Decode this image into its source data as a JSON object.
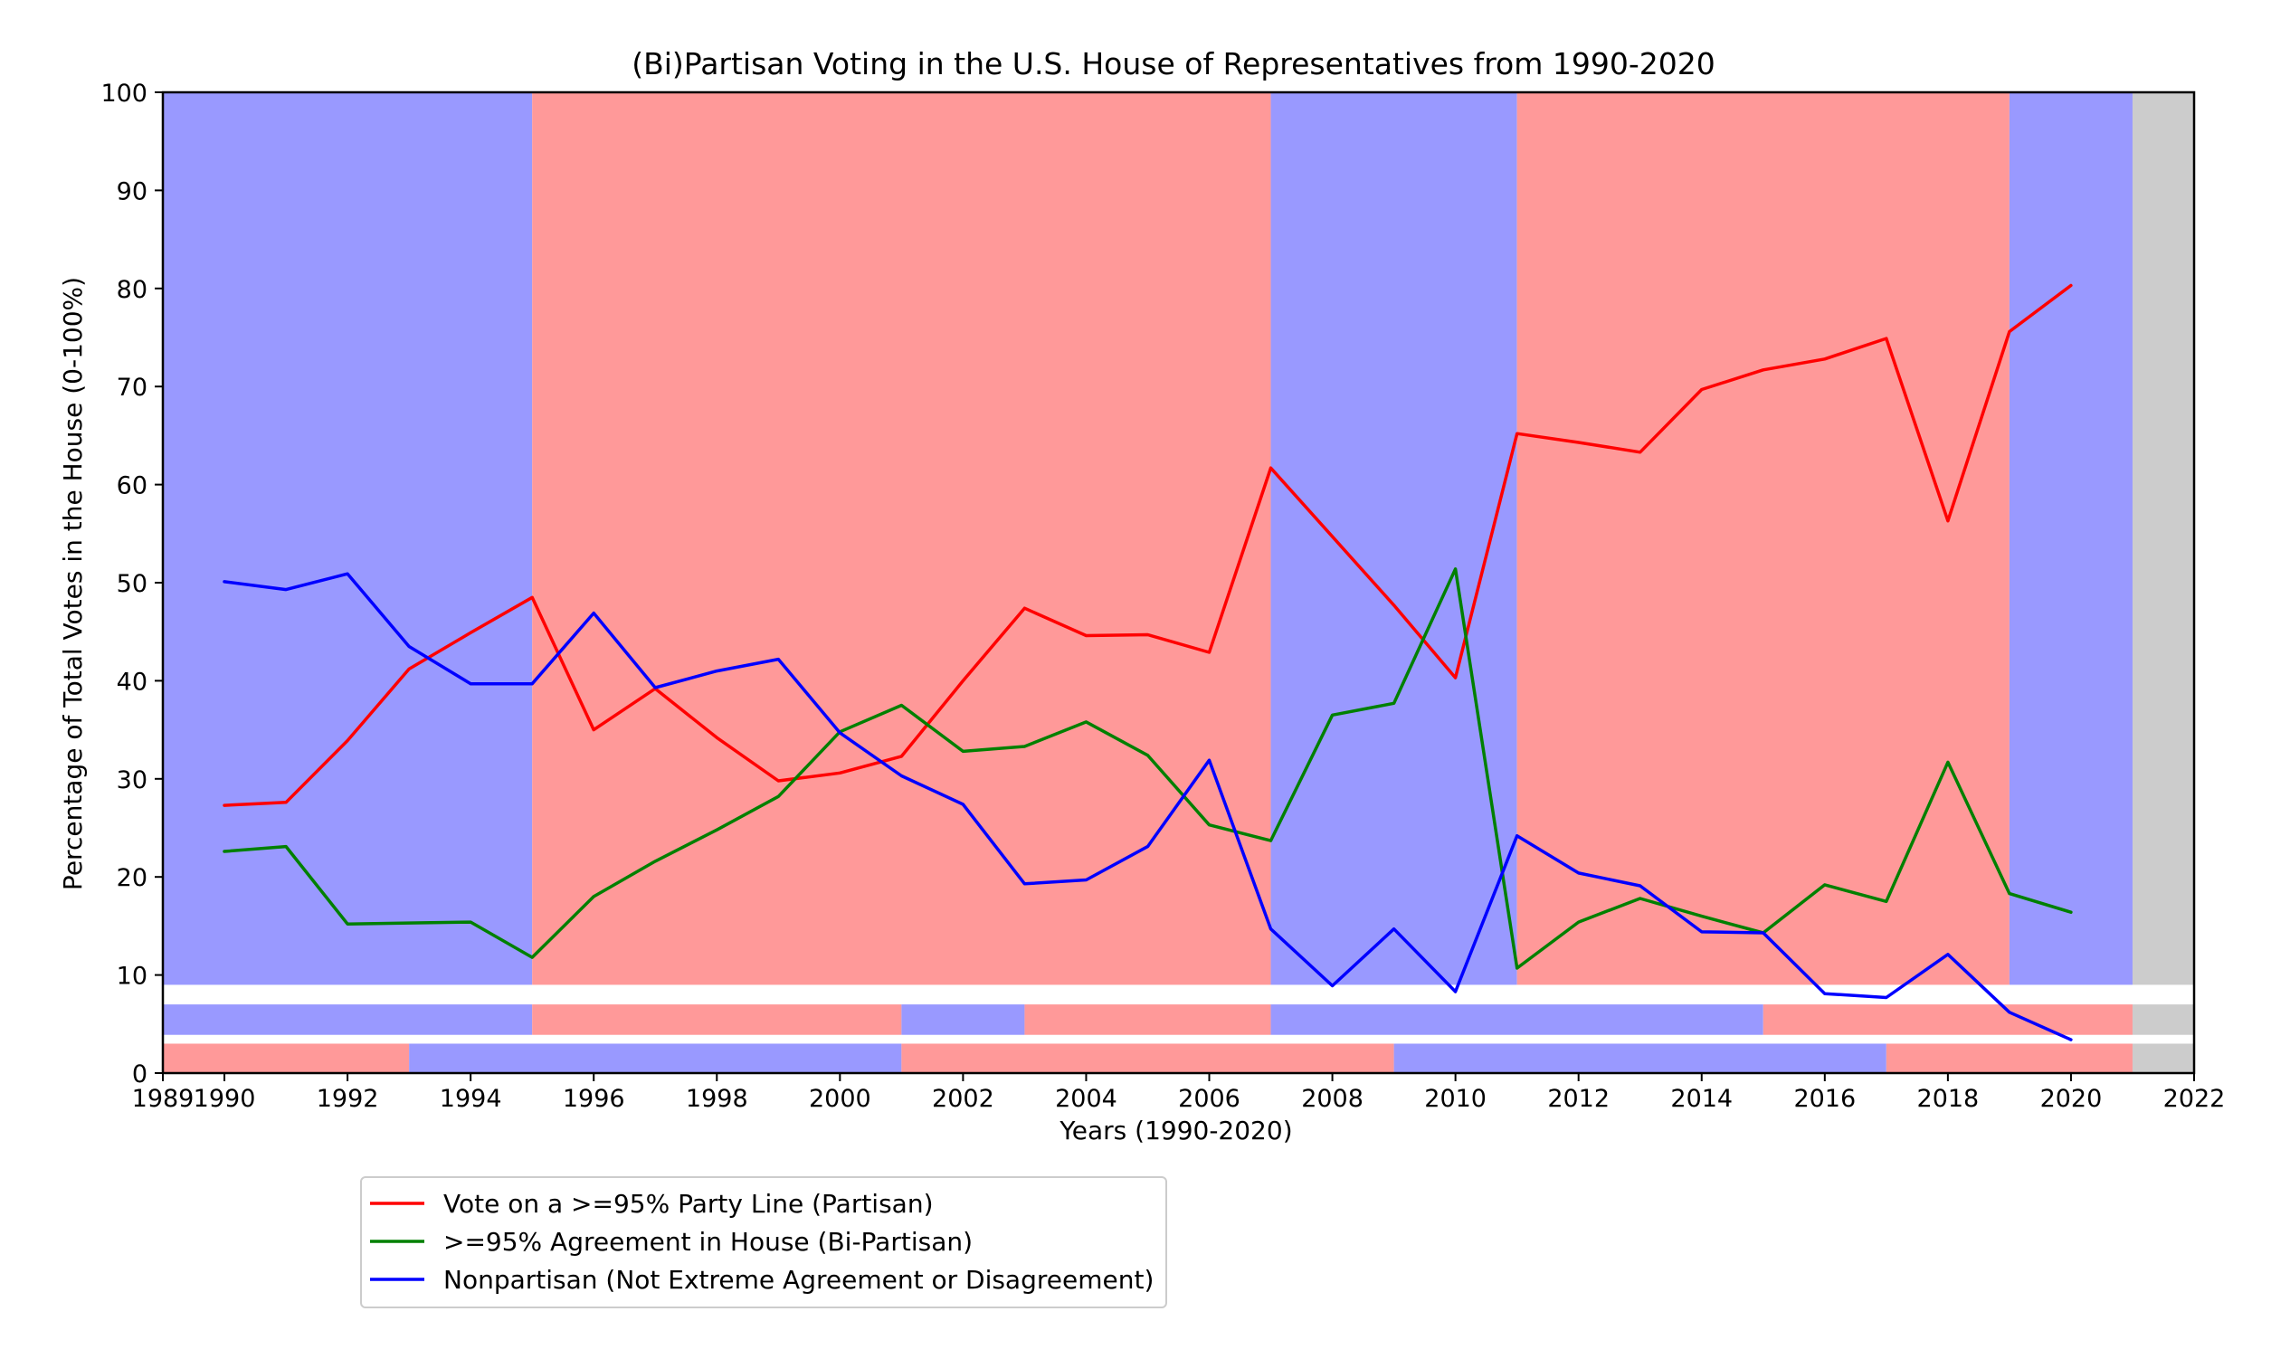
{
  "chart_data": {
    "type": "line",
    "title": "(Bi)Partisan Voting in the U.S. House of Representatives from 1990-2020",
    "xlabel": "Years (1990-2020)",
    "ylabel": "Percentage of Total Votes in the House (0-100%)",
    "xlim": [
      1989,
      2022
    ],
    "ylim": [
      0,
      100
    ],
    "xticks": [
      1989,
      1990,
      1992,
      1994,
      1996,
      1998,
      2000,
      2002,
      2004,
      2006,
      2008,
      2010,
      2012,
      2014,
      2016,
      2018,
      2020,
      2022
    ],
    "yticks": [
      0,
      10,
      20,
      30,
      40,
      50,
      60,
      70,
      80,
      90,
      100
    ],
    "grid": false,
    "legend_position": "below plot, left",
    "x": [
      1990,
      1991,
      1992,
      1993,
      1994,
      1995,
      1996,
      1997,
      1998,
      1999,
      2000,
      2001,
      2002,
      2003,
      2004,
      2005,
      2006,
      2007,
      2008,
      2009,
      2010,
      2011,
      2012,
      2013,
      2014,
      2015,
      2016,
      2017,
      2018,
      2019,
      2020
    ],
    "series": [
      {
        "name": "Vote on a >=95% Party Line (Partisan)",
        "color": "#ff0000",
        "values": [
          27.3,
          27.6,
          33.9,
          41.2,
          44.9,
          48.5,
          35.0,
          39.2,
          34.2,
          29.8,
          30.6,
          32.3,
          40.0,
          47.4,
          44.6,
          44.7,
          42.9,
          61.7,
          54.7,
          47.7,
          40.3,
          65.2,
          64.3,
          63.3,
          69.7,
          71.7,
          72.8,
          74.9,
          56.3,
          75.6,
          80.3
        ]
      },
      {
        "name": ">=95% Agreement in House (Bi-Partisan)",
        "color": "#008000",
        "values": [
          22.6,
          23.1,
          15.2,
          15.3,
          15.4,
          11.8,
          18.0,
          21.6,
          24.8,
          28.2,
          34.8,
          37.5,
          32.8,
          33.3,
          35.8,
          32.4,
          25.3,
          23.7,
          36.5,
          37.7,
          51.4,
          10.7,
          15.4,
          17.8,
          16.0,
          14.3,
          19.2,
          17.5,
          31.7,
          18.3,
          16.4
        ]
      },
      {
        "name": "Nonpartisan (Not Extreme Agreement or Disagreement)",
        "color": "#0000ff",
        "values": [
          50.1,
          49.3,
          50.9,
          43.5,
          39.7,
          39.7,
          46.9,
          39.3,
          41.0,
          42.2,
          34.7,
          30.3,
          27.4,
          19.3,
          19.7,
          23.1,
          31.9,
          14.7,
          8.9,
          14.7,
          8.3,
          24.2,
          20.4,
          19.1,
          14.4,
          14.3,
          8.1,
          7.7,
          12.1,
          6.2,
          3.4
        ]
      }
    ],
    "control_bands": {
      "colors": {
        "D": "#9999ff",
        "R": "#ff9999",
        "none": "#cccccc"
      },
      "main": [
        {
          "start": 1989,
          "end": 1995,
          "party": "D"
        },
        {
          "start": 1995,
          "end": 2007,
          "party": "R"
        },
        {
          "start": 2007,
          "end": 2011,
          "party": "D"
        },
        {
          "start": 2011,
          "end": 2019,
          "party": "R"
        },
        {
          "start": 2019,
          "end": 2021,
          "party": "D"
        },
        {
          "start": 2021,
          "end": 2022,
          "party": "none"
        }
      ],
      "middle": [
        {
          "start": 1989,
          "end": 1995,
          "party": "D"
        },
        {
          "start": 1995,
          "end": 2001,
          "party": "R"
        },
        {
          "start": 2001,
          "end": 2003,
          "party": "D"
        },
        {
          "start": 2003,
          "end": 2007,
          "party": "R"
        },
        {
          "start": 2007,
          "end": 2015,
          "party": "D"
        },
        {
          "start": 2015,
          "end": 2021,
          "party": "R"
        },
        {
          "start": 2021,
          "end": 2022,
          "party": "none"
        }
      ],
      "bottom": [
        {
          "start": 1989,
          "end": 1993,
          "party": "R"
        },
        {
          "start": 1993,
          "end": 2001,
          "party": "D"
        },
        {
          "start": 2001,
          "end": 2009,
          "party": "R"
        },
        {
          "start": 2009,
          "end": 2017,
          "party": "D"
        },
        {
          "start": 2017,
          "end": 2021,
          "party": "R"
        },
        {
          "start": 2021,
          "end": 2022,
          "party": "none"
        }
      ]
    }
  }
}
